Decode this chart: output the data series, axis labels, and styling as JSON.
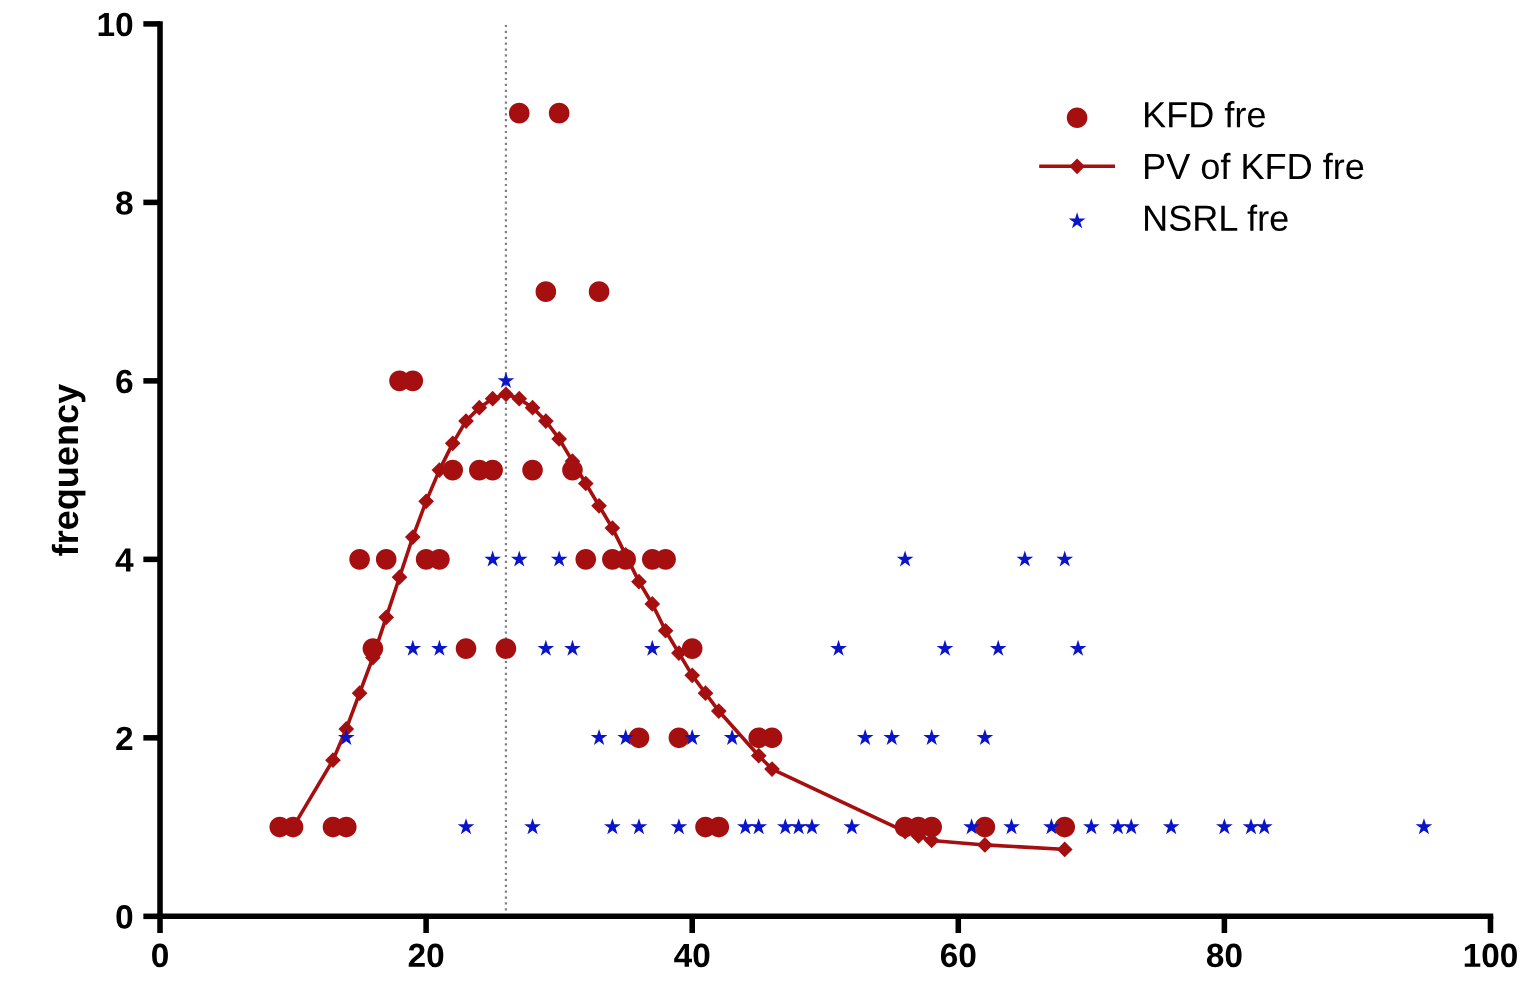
{
  "chart_data": {
    "type": "scatter",
    "ylabel": "frequency",
    "xlim": [
      0,
      100
    ],
    "xticks": [
      0,
      20,
      40,
      60,
      80,
      100
    ],
    "ylim": [
      0,
      10
    ],
    "yticks": [
      0,
      2,
      4,
      6,
      8,
      10
    ],
    "grid": false,
    "legend": "top right",
    "ref_lines": [
      {
        "axis": "x",
        "value": 26,
        "color": "#808080",
        "line_style": "dotted"
      }
    ],
    "series": [
      {
        "name": "KFD fre",
        "marker": "circle",
        "color": "#a50f0f",
        "x": [
          27,
          30,
          29,
          33,
          18,
          19,
          22,
          24,
          25,
          28,
          31,
          15,
          17,
          20,
          21,
          32,
          34,
          35,
          37,
          38,
          16,
          23,
          26,
          40,
          36,
          39,
          45,
          46,
          9,
          10,
          13,
          14,
          41,
          42,
          56,
          57,
          58,
          62,
          68
        ],
        "values": [
          9,
          9,
          7,
          7,
          6,
          6,
          5,
          5,
          5,
          5,
          5,
          4,
          4,
          4,
          4,
          4,
          4,
          4,
          4,
          4,
          3,
          3,
          3,
          3,
          2,
          2,
          2,
          2,
          1,
          1,
          1,
          1,
          1,
          1,
          1,
          1,
          1,
          1,
          1
        ]
      },
      {
        "name": "PV of KFD fre",
        "type": "line",
        "marker": "diamond",
        "line_style": "solid",
        "color": "#a50f0f",
        "x": [
          10,
          13,
          14,
          15,
          16,
          17,
          18,
          19,
          20,
          21,
          22,
          23,
          24,
          25,
          26,
          27,
          28,
          29,
          30,
          31,
          32,
          33,
          34,
          35,
          36,
          37,
          38,
          39,
          40,
          41,
          42,
          45,
          46,
          56,
          57,
          58,
          62,
          68
        ],
        "values": [
          1.0,
          1.75,
          2.1,
          2.5,
          2.9,
          3.35,
          3.8,
          4.25,
          4.65,
          5.0,
          5.3,
          5.55,
          5.7,
          5.8,
          5.85,
          5.8,
          5.7,
          5.55,
          5.35,
          5.1,
          4.85,
          4.6,
          4.35,
          4.05,
          3.75,
          3.5,
          3.2,
          2.95,
          2.7,
          2.5,
          2.3,
          1.8,
          1.65,
          0.95,
          0.9,
          0.85,
          0.8,
          0.75
        ]
      },
      {
        "name": "NSRL fre",
        "marker": "star",
        "color": "#0a14c8",
        "x": [
          26,
          25,
          27,
          30,
          56,
          65,
          68,
          19,
          21,
          29,
          31,
          37,
          51,
          59,
          63,
          69,
          14,
          33,
          35,
          40,
          43,
          53,
          55,
          58,
          62,
          23,
          28,
          34,
          36,
          39,
          44,
          45,
          47,
          48,
          49,
          52,
          61,
          64,
          67,
          70,
          72,
          73,
          76,
          80,
          82,
          83,
          95
        ],
        "values": [
          6,
          4,
          4,
          4,
          4,
          4,
          4,
          3,
          3,
          3,
          3,
          3,
          3,
          3,
          3,
          3,
          2,
          2,
          2,
          2,
          2,
          2,
          2,
          2,
          2,
          1,
          1,
          1,
          1,
          1,
          1,
          1,
          1,
          1,
          1,
          1,
          1,
          1,
          1,
          1,
          1,
          1,
          1,
          1,
          1,
          1,
          1
        ]
      }
    ]
  }
}
